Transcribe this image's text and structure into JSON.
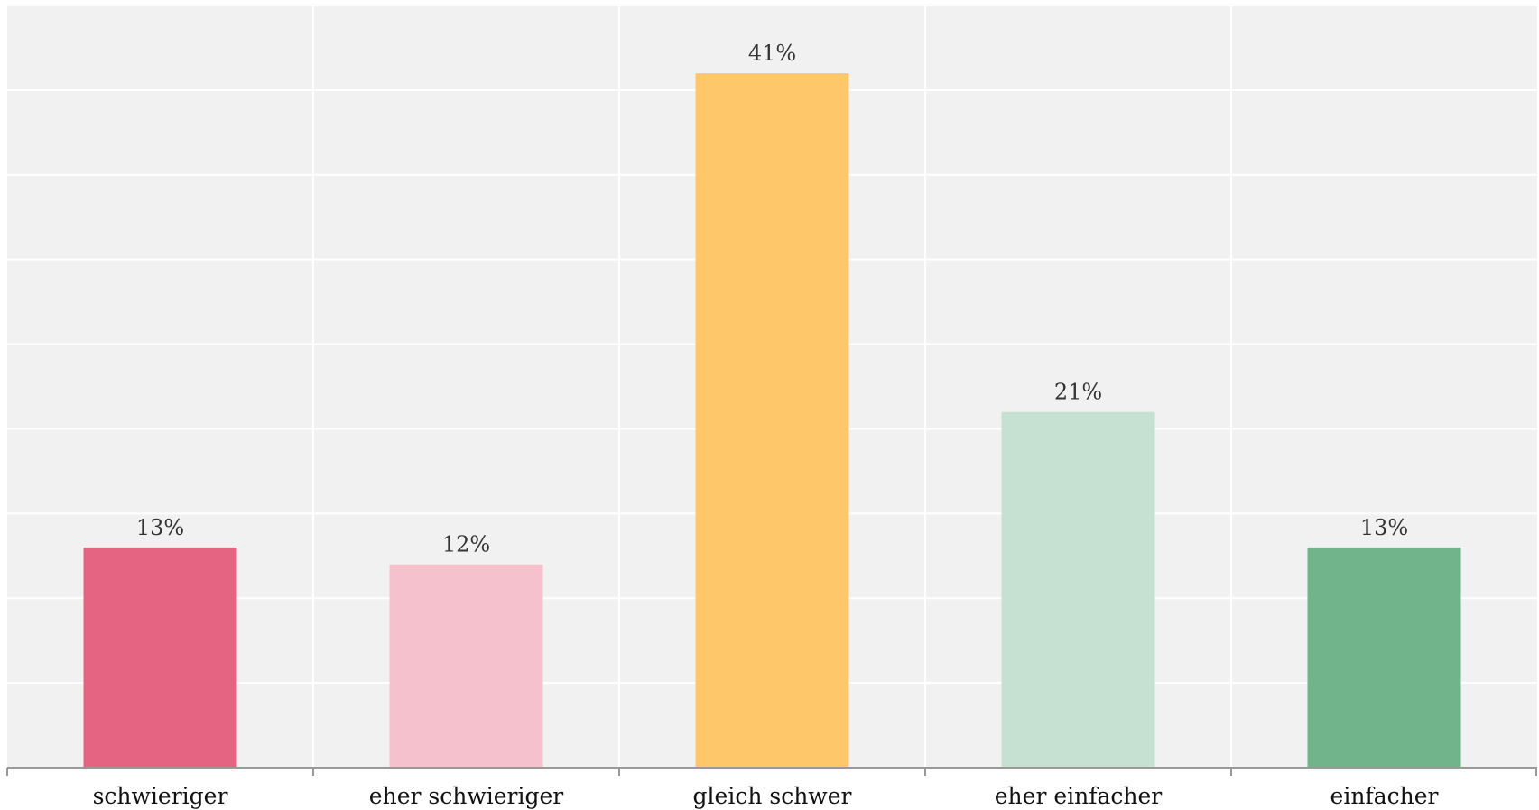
{
  "chart_data": {
    "type": "bar",
    "title": "",
    "xlabel": "",
    "ylabel": "",
    "categories": [
      "schwieriger",
      "eher schwieriger",
      "gleich schwer",
      "eher einfacher",
      "einfacher"
    ],
    "values": [
      13,
      12,
      41,
      21,
      13
    ],
    "value_labels": [
      "13%",
      "12%",
      "41%",
      "21%",
      "13%"
    ],
    "colors": [
      "#e56482",
      "#f5c1cd",
      "#fec76a",
      "#c6e1d1",
      "#71b38b"
    ],
    "ylim": [
      0,
      45
    ],
    "grid": true,
    "legend": "none",
    "plot_background": "#f1f1f1",
    "grid_color": "#ffffff",
    "axis_color": "#999999"
  }
}
